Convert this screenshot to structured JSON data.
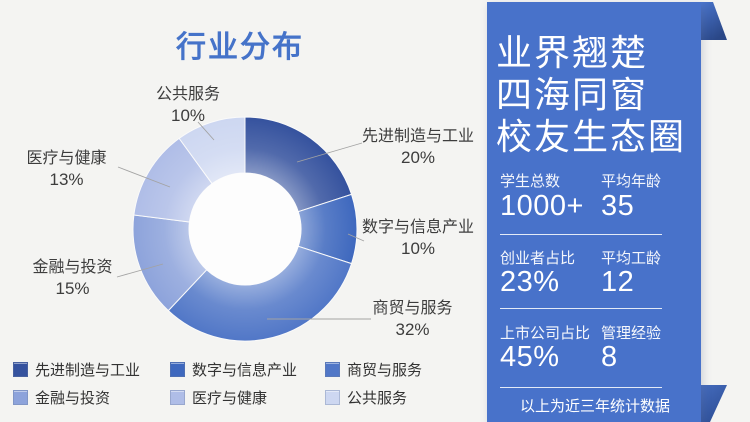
{
  "background": "#F4F4F2",
  "chart_data": {
    "type": "pie",
    "subtype": "donut",
    "title": "行业分布",
    "unit": "%",
    "direction": "clockwise",
    "start_angle_deg": 0,
    "legend_position": "bottom",
    "segments": [
      {
        "name": "先进制造与工业",
        "value": 20,
        "label": "20%",
        "color": "#35529E"
      },
      {
        "name": "数字与信息产业",
        "value": 10,
        "label": "10%",
        "color": "#3E68BE"
      },
      {
        "name": "商贸与服务",
        "value": 32,
        "label": "32%",
        "color": "#5177C7"
      },
      {
        "name": "金融与投资",
        "value": 15,
        "label": "15%",
        "color": "#8DA3DB"
      },
      {
        "name": "医疗与健康",
        "value": 13,
        "label": "13%",
        "color": "#AFBDE7"
      },
      {
        "name": "公共服务",
        "value": 10,
        "label": "10%",
        "color": "#CDD7F1"
      }
    ]
  },
  "panel": {
    "bg": "#4872CA",
    "fold_color_dark": "#2A4787",
    "heading_lines": [
      "业界翘楚",
      "四海同窗",
      "校友生态圈"
    ],
    "stats": [
      {
        "label": "学生总数",
        "value": "1000+"
      },
      {
        "label": "平均年龄",
        "value": "35"
      },
      {
        "label": "创业者占比",
        "value": "23%"
      },
      {
        "label": "平均工龄",
        "value": "12"
      },
      {
        "label": "上市公司占比",
        "value": "45%"
      },
      {
        "label": "管理经验",
        "value": "8"
      }
    ],
    "footer": "以上为近三年统计数据"
  }
}
